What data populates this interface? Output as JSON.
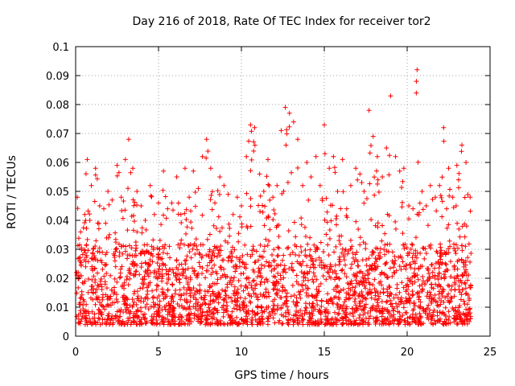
{
  "chart_data": {
    "type": "scatter",
    "title": "Day 216 of 2018, Rate Of TEC Index for receiver tor2",
    "xlabel": "GPS time / hours",
    "ylabel": "ROTI / TECUs",
    "xlim": [
      0,
      25
    ],
    "ylim": [
      0,
      0.1
    ],
    "x_ticks": [
      "0",
      "5",
      "10",
      "15",
      "20",
      "25"
    ],
    "y_ticks": [
      "0",
      "0.01",
      "0.02",
      "0.03",
      "0.04",
      "0.05",
      "0.06",
      "0.07",
      "0.08",
      "0.09",
      "0.1"
    ],
    "grid": true,
    "marker": "plus",
    "color": "#ff0000",
    "series": [
      {
        "x": [
          0.1,
          0.3,
          0.55,
          0.7,
          0.95,
          1.2,
          1.45,
          1.7,
          1.95,
          2.2,
          2.5,
          2.75,
          3.0,
          3.2,
          3.45,
          3.7,
          3.95,
          4.2,
          4.5,
          4.75,
          5.0,
          5.3,
          5.55,
          5.8,
          6.1,
          6.35,
          6.6,
          6.85,
          7.1,
          7.4,
          7.65,
          7.9,
          8.15,
          8.4,
          8.7,
          8.95,
          9.2,
          9.5,
          9.75,
          10.0,
          10.3,
          10.55,
          10.8,
          11.1,
          11.35,
          11.6,
          11.9,
          12.15,
          12.4,
          12.65,
          12.9,
          13.15,
          13.4,
          13.7,
          13.95,
          14.2,
          14.5,
          14.75,
          15.0,
          15.3,
          15.55,
          15.8,
          16.1,
          16.35,
          16.6,
          16.9,
          17.15,
          17.4,
          17.7,
          17.95,
          18.2,
          18.5,
          18.75,
          19.0,
          19.3,
          19.55,
          19.8,
          20.1,
          20.35,
          20.6,
          20.9,
          21.15,
          21.4,
          21.7,
          21.95,
          22.2,
          22.5,
          22.75,
          23.0,
          23.3,
          23.55,
          23.8
        ],
        "y": [
          0.048,
          0.036,
          0.042,
          0.061,
          0.052,
          0.058,
          0.045,
          0.044,
          0.05,
          0.047,
          0.059,
          0.048,
          0.061,
          0.068,
          0.058,
          0.05,
          0.045,
          0.04,
          0.052,
          0.042,
          0.046,
          0.057,
          0.044,
          0.046,
          0.055,
          0.042,
          0.058,
          0.048,
          0.057,
          0.051,
          0.062,
          0.068,
          0.058,
          0.046,
          0.055,
          0.052,
          0.049,
          0.042,
          0.048,
          0.045,
          0.062,
          0.073,
          0.072,
          0.056,
          0.05,
          0.061,
          0.048,
          0.052,
          0.071,
          0.079,
          0.077,
          0.074,
          0.068,
          0.052,
          0.06,
          0.055,
          0.062,
          0.052,
          0.073,
          0.058,
          0.062,
          0.05,
          0.061,
          0.044,
          0.052,
          0.058,
          0.056,
          0.05,
          0.078,
          0.069,
          0.062,
          0.055,
          0.065,
          0.083,
          0.062,
          0.057,
          0.058,
          0.045,
          0.044,
          0.092,
          0.05,
          0.045,
          0.052,
          0.048,
          0.052,
          0.072,
          0.058,
          0.048,
          0.059,
          0.066,
          0.06,
          0.048
        ]
      }
    ]
  }
}
